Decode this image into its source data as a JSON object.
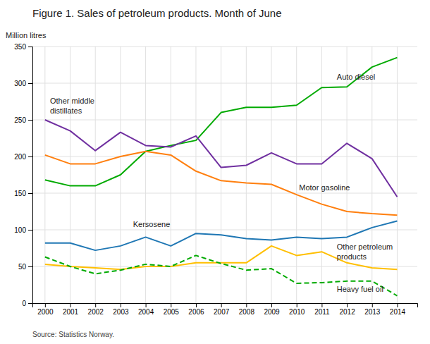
{
  "chart_data": {
    "type": "line",
    "title": "Figure 1. Sales of petroleum products. Month of June",
    "ylabel": "Million litres",
    "source": "Source: Statistics Norway.",
    "x": [
      2000,
      2001,
      2002,
      2003,
      2004,
      2005,
      2006,
      2007,
      2008,
      2009,
      2010,
      2011,
      2012,
      2013,
      2014
    ],
    "series": [
      {
        "color": "#00aa00",
        "line_style": "solid",
        "values": [
          168,
          160,
          160,
          175,
          207,
          215,
          222,
          260,
          267,
          267,
          270,
          294,
          295,
          322,
          335
        ]
      },
      {
        "color": "#7030a0",
        "line_style": "solid",
        "values": [
          250,
          235,
          208,
          233,
          215,
          213,
          228,
          185,
          188,
          205,
          190,
          190,
          218,
          197,
          145
        ]
      },
      {
        "color": "#ff7f0e",
        "line_style": "solid",
        "values": [
          202,
          190,
          190,
          200,
          207,
          202,
          180,
          167,
          164,
          162,
          148,
          135,
          125,
          122,
          120
        ]
      },
      {
        "color": "#1f77b4",
        "line_style": "solid",
        "values": [
          82,
          82,
          72,
          78,
          90,
          78,
          95,
          93,
          88,
          86,
          90,
          88,
          90,
          103,
          112
        ]
      },
      {
        "color": "#ffbf00",
        "line_style": "solid",
        "values": [
          53,
          50,
          48,
          46,
          50,
          50,
          55,
          55,
          55,
          78,
          65,
          70,
          55,
          48,
          46
        ]
      },
      {
        "color": "#00aa00",
        "line_style": "dashed",
        "values": [
          63,
          50,
          40,
          45,
          53,
          50,
          65,
          54,
          45,
          47,
          27,
          28,
          30,
          30,
          10
        ]
      }
    ],
    "annotations": [
      {
        "text": "Auto diesel",
        "x": 2011.6,
        "y": 308
      },
      {
        "text": "Other middle\ndistillates",
        "x": 2000.2,
        "y": 268
      },
      {
        "text": "Motor gasoline",
        "x": 2010.1,
        "y": 157
      },
      {
        "text": "Kersosene",
        "x": 2003.5,
        "y": 107
      },
      {
        "text": "Other petroleum\nproducts",
        "x": 2011.6,
        "y": 69
      },
      {
        "text": "Heavy fuel oil",
        "x": 2011.6,
        "y": 18
      }
    ],
    "xlim": [
      1999.5,
      2014.8
    ],
    "xticks": [
      2000,
      2001,
      2002,
      2003,
      2004,
      2005,
      2006,
      2007,
      2008,
      2009,
      2010,
      2011,
      2012,
      2013,
      2014
    ],
    "ylim": [
      0,
      350
    ],
    "yticks": [
      0,
      50,
      100,
      150,
      200,
      250,
      300,
      350
    ],
    "grid": true
  }
}
